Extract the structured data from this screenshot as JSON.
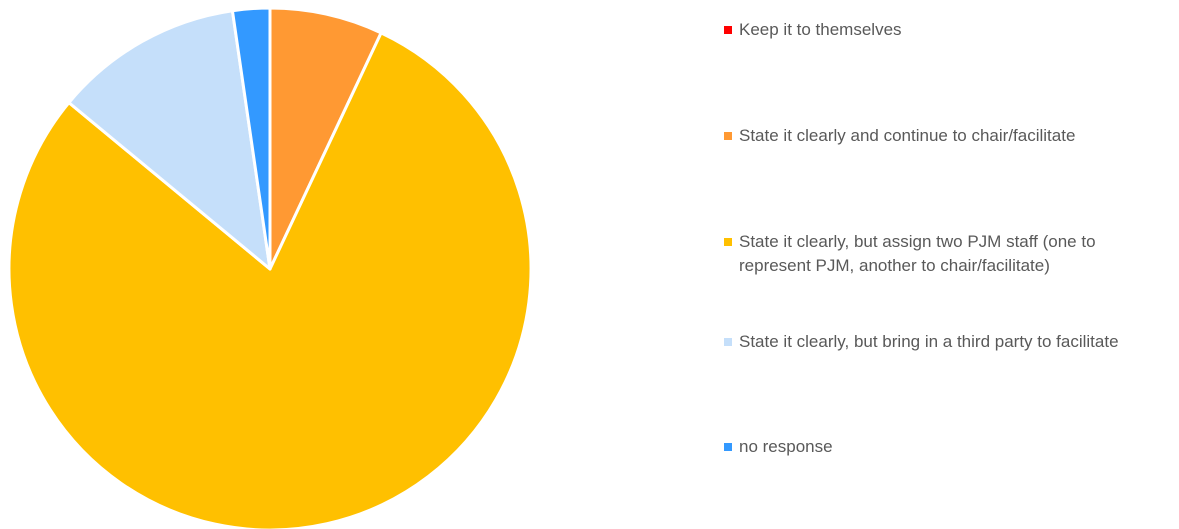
{
  "chart_data": {
    "type": "pie",
    "title": "",
    "categories": [
      "Keep it to themselves",
      "State it clearly and continue to chair/facilitate",
      "State it clearly, but assign two PJM staff (one to represent PJM, another to chair/facilitate)",
      "State it clearly, but bring in a third party to facilitate",
      "no response"
    ],
    "values": [
      0,
      7,
      79,
      11.7,
      2.3
    ],
    "colors": [
      "#ff0000",
      "#ff9933",
      "#ffc000",
      "#c5dffa",
      "#3399ff"
    ],
    "legend": "right"
  },
  "legend": {
    "items": [
      {
        "label": "Keep it to themselves",
        "color": "#ff0000"
      },
      {
        "label": "State it clearly and continue to chair/facilitate",
        "color": "#ff9933"
      },
      {
        "label": "State it clearly, but assign two PJM staff (one to represent PJM, another to chair/facilitate)",
        "color": "#ffc000"
      },
      {
        "label": "State it clearly, but bring in a third party to facilitate",
        "color": "#c5dffa"
      },
      {
        "label": "no response",
        "color": "#3399ff"
      }
    ]
  }
}
